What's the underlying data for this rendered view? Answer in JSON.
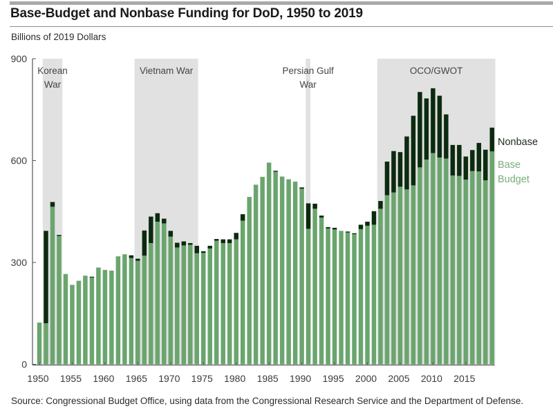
{
  "header": {
    "title": "Base-Budget and Nonbase Funding for DoD, 1950 to 2019",
    "subtitle": "Billions of 2019 Dollars"
  },
  "footer": {
    "source": "Source: Congressional Budget Office, using data from the Congressional Research Service and the Department of Defense."
  },
  "colors": {
    "base": "#6aa56e",
    "nonbase": "#0c2a0f",
    "shade": "#e1e1e1",
    "legend_base_text": "#78ad7b",
    "axis": "#555555"
  },
  "chart_data": {
    "type": "bar",
    "stacked": true,
    "title": "Base-Budget and Nonbase Funding for DoD, 1950 to 2019",
    "ylabel": "Billions of 2019 Dollars",
    "xlabel": "",
    "ylim": [
      0,
      900
    ],
    "yticks": [
      0,
      300,
      600,
      900
    ],
    "xticks": [
      1950,
      1955,
      1960,
      1965,
      1970,
      1975,
      1980,
      1985,
      1990,
      1995,
      2000,
      2005,
      2010,
      2015
    ],
    "grid": false,
    "legend": {
      "placement": "right",
      "entries": [
        "Nonbase",
        "Base Budget"
      ]
    },
    "years": [
      1950,
      1951,
      1952,
      1953,
      1954,
      1955,
      1956,
      1957,
      1958,
      1959,
      1960,
      1961,
      1962,
      1963,
      1964,
      1965,
      1966,
      1967,
      1968,
      1969,
      1970,
      1971,
      1972,
      1973,
      1974,
      1975,
      1976,
      1977,
      1978,
      1979,
      1980,
      1981,
      1982,
      1983,
      1984,
      1985,
      1986,
      1987,
      1988,
      1989,
      1990,
      1991,
      1992,
      1993,
      1994,
      1995,
      1996,
      1997,
      1998,
      1999,
      2000,
      2001,
      2002,
      2003,
      2004,
      2005,
      2006,
      2007,
      2008,
      2009,
      2010,
      2011,
      2012,
      2013,
      2014,
      2015,
      2016,
      2017,
      2018,
      2019
    ],
    "series": [
      {
        "name": "Base Budget",
        "values": [
          123,
          121,
          464,
          378,
          266,
          234,
          246,
          261,
          256,
          285,
          278,
          276,
          318,
          324,
          313,
          305,
          320,
          357,
          420,
          415,
          376,
          344,
          350,
          352,
          327,
          328,
          341,
          364,
          357,
          357,
          368,
          423,
          493,
          529,
          552,
          594,
          567,
          553,
          545,
          538,
          517,
          399,
          458,
          432,
          400,
          397,
          393,
          388,
          383,
          398,
          408,
          411,
          458,
          498,
          506,
          523,
          515,
          527,
          580,
          603,
          622,
          609,
          606,
          556,
          555,
          544,
          569,
          568,
          542,
          627
        ]
      },
      {
        "name": "Nonbase",
        "values": [
          0,
          272,
          14,
          3,
          0,
          0,
          0,
          0,
          2,
          0,
          0,
          0,
          0,
          0,
          8,
          6,
          74,
          78,
          25,
          14,
          17,
          14,
          12,
          5,
          22,
          5,
          8,
          5,
          11,
          11,
          19,
          19,
          0,
          0,
          0,
          0,
          3,
          0,
          0,
          0,
          4,
          75,
          15,
          6,
          4,
          5,
          0,
          3,
          3,
          13,
          12,
          40,
          23,
          99,
          122,
          102,
          156,
          205,
          222,
          180,
          191,
          182,
          130,
          90,
          91,
          68,
          62,
          84,
          90,
          70
        ]
      }
    ],
    "periods": [
      {
        "label": [
          "Korean",
          "War"
        ],
        "start": 1950.5,
        "end": 1953.5
      },
      {
        "label": [
          "Vietnam War"
        ],
        "start": 1964.5,
        "end": 1974.2
      },
      {
        "label": [
          "Persian Gulf",
          "War"
        ],
        "start": 1990.6,
        "end": 1991.3
      },
      {
        "label": [
          "OCO/GWOT"
        ],
        "start": 2001.5,
        "end": 2019.5
      }
    ]
  }
}
